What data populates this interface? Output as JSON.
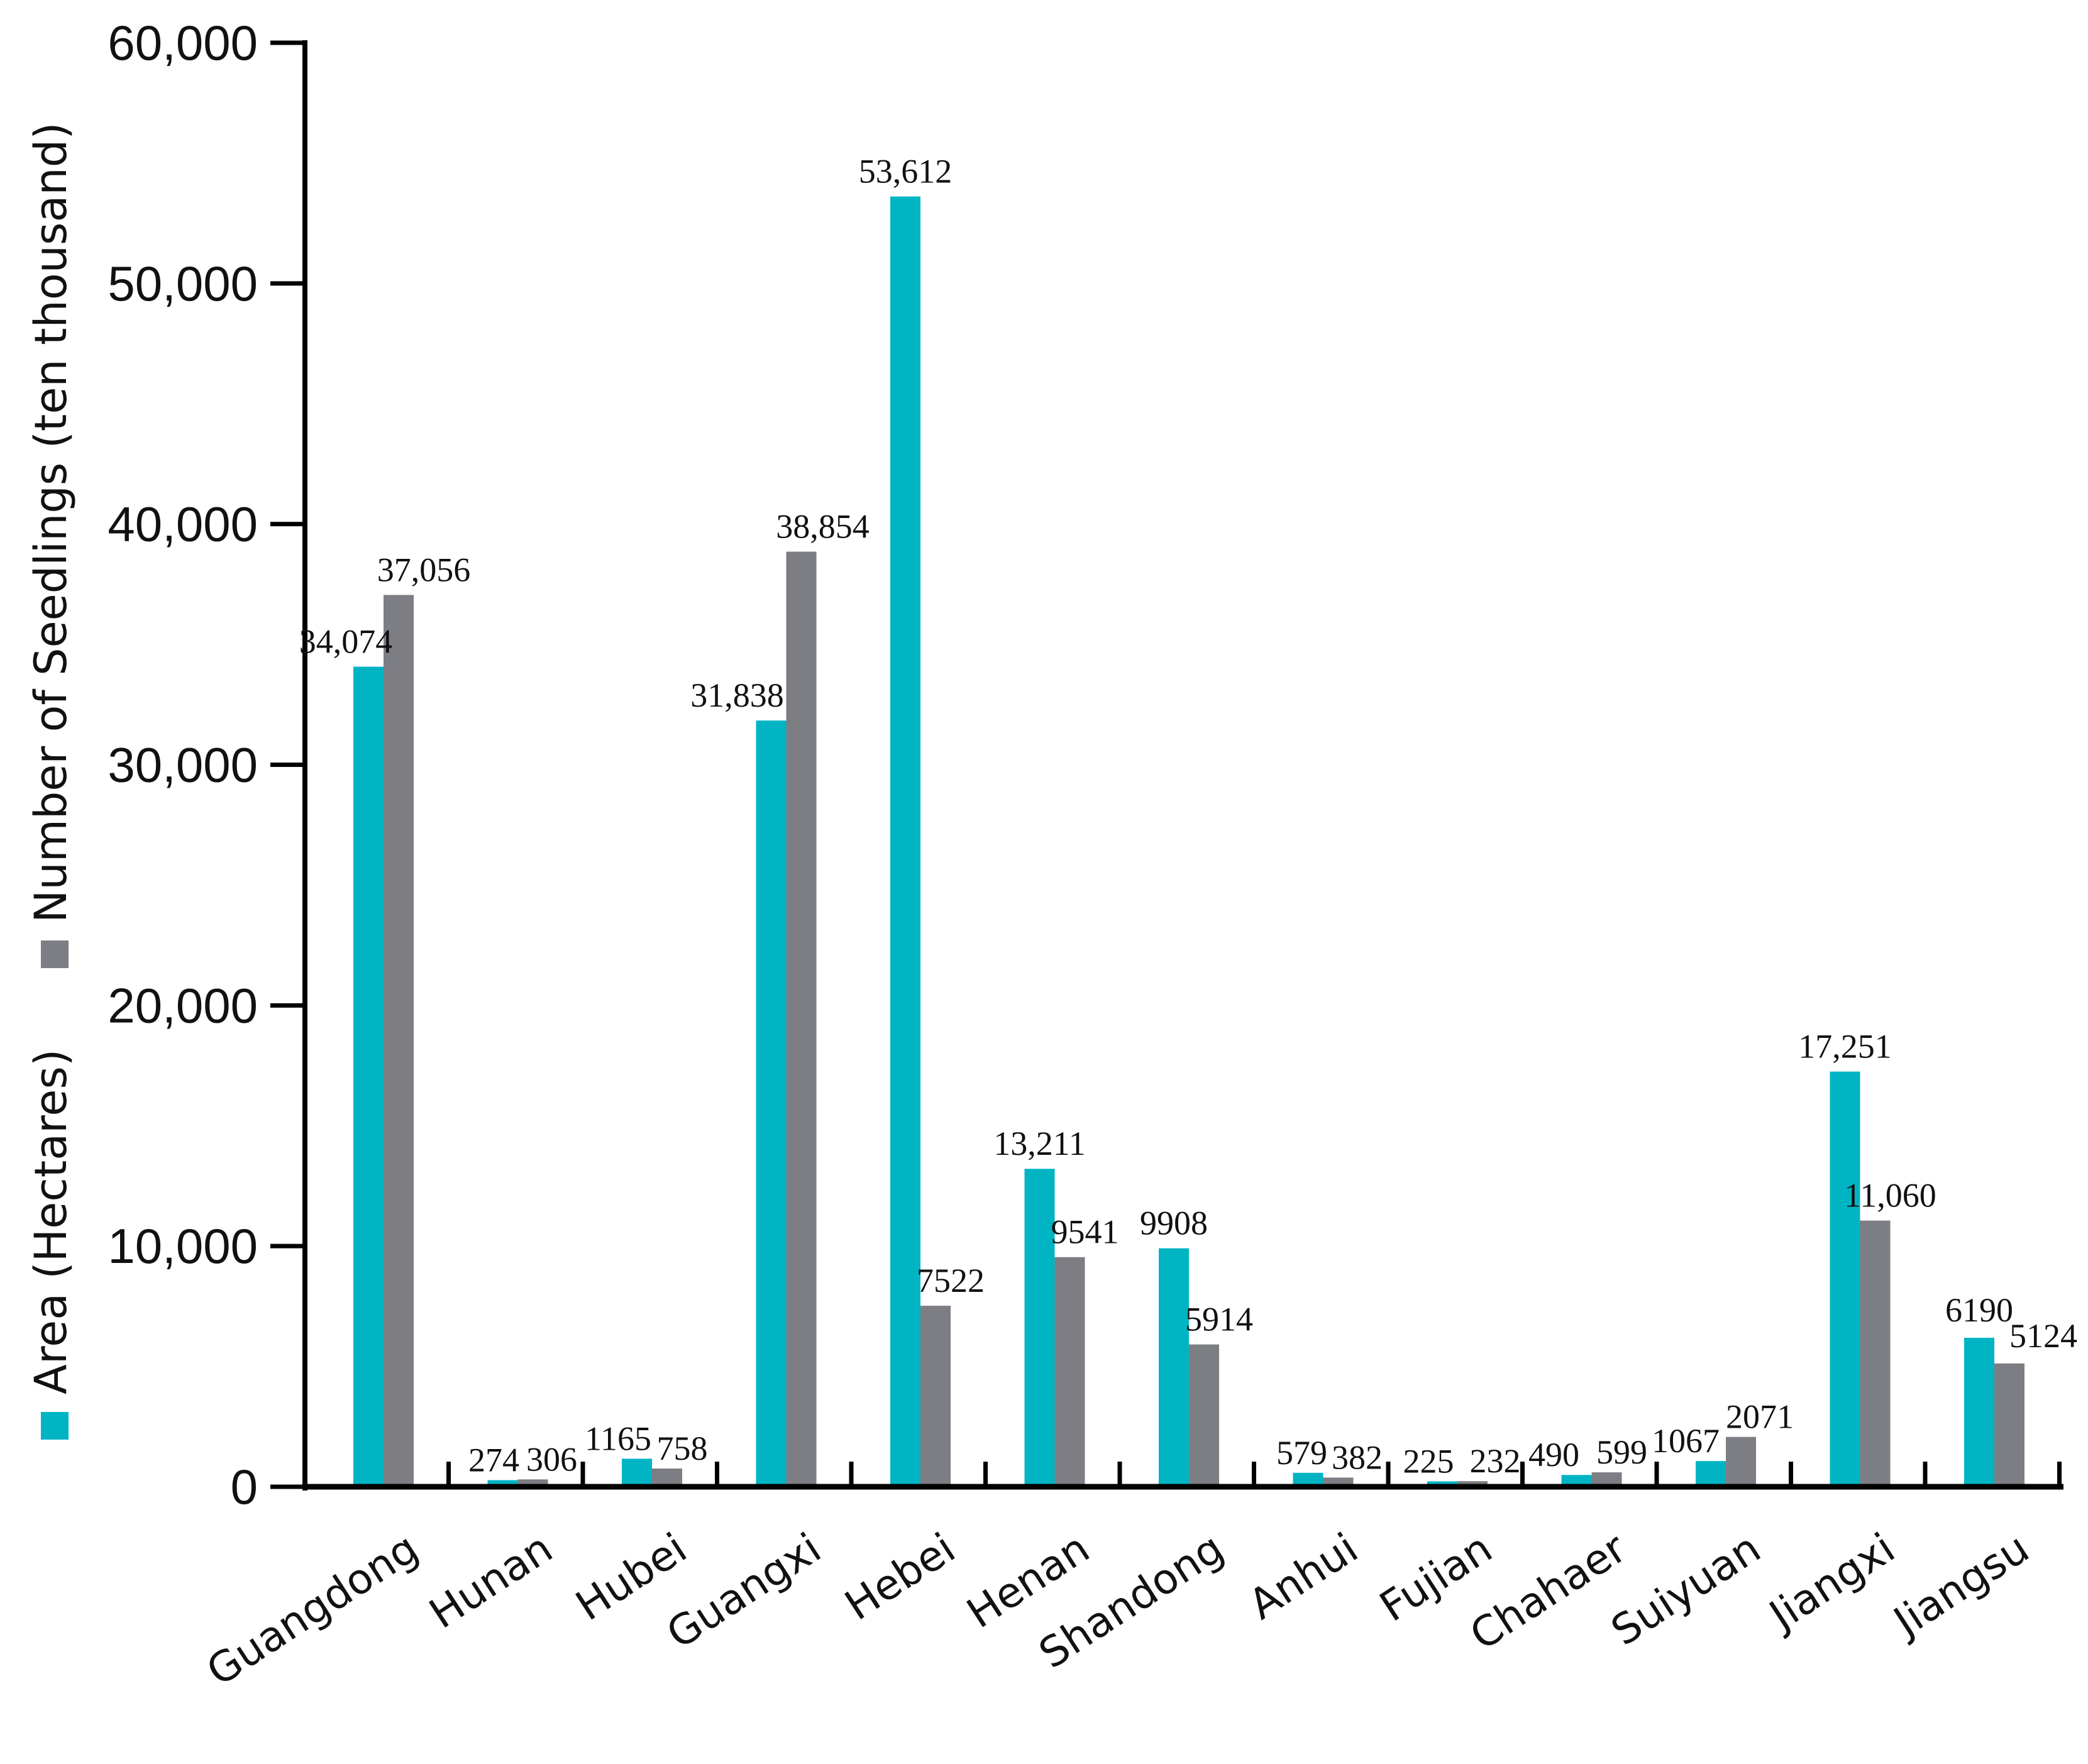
{
  "chart_data": {
    "type": "bar",
    "title": "",
    "xlabel": "",
    "ylabel": "Area (Hectares) Number of Seedlings (ten thousand)",
    "ylim": [
      0,
      60000
    ],
    "yticks": [
      0,
      10000,
      20000,
      30000,
      40000,
      50000,
      60000
    ],
    "ytick_labels": [
      "0",
      "10,000",
      "20,000",
      "30,000",
      "40,000",
      "50,000",
      "60,000"
    ],
    "categories": [
      "Guangdong",
      "Hunan",
      "Hubei",
      "Guangxi",
      "Hebei",
      "Henan",
      "Shandong",
      "Anhui",
      "Fujian",
      "Chahaer",
      "Suiyuan",
      "Jiangxi",
      "Jiangsu"
    ],
    "series": [
      {
        "name": "Area (Hectares)",
        "color": "#00b4c4",
        "values": [
          34074,
          274,
          1165,
          31838,
          53612,
          13211,
          9908,
          579,
          225,
          490,
          1067,
          17251,
          6190
        ],
        "labels": [
          "34,074",
          "274",
          "1165",
          "31,838",
          "53,612",
          "13,211",
          "9908",
          "579",
          "225",
          "490",
          "1067",
          "17,251",
          "6190"
        ]
      },
      {
        "name": "Number of Seedlings (ten thousand)",
        "color": "#7d7e83",
        "values": [
          37056,
          306,
          758,
          38854,
          7522,
          9541,
          5914,
          382,
          232,
          599,
          2071,
          11060,
          5124
        ],
        "labels": [
          "37,056",
          "306",
          "758",
          "38,854",
          "7522",
          "9541",
          "5914",
          "382",
          "232",
          "599",
          "2071",
          "11,060",
          "5124"
        ]
      }
    ],
    "legend": {
      "position": "left-vertical",
      "entries": [
        "Area (Hectares)",
        "Number of Seedlings (ten thousand)"
      ]
    }
  }
}
